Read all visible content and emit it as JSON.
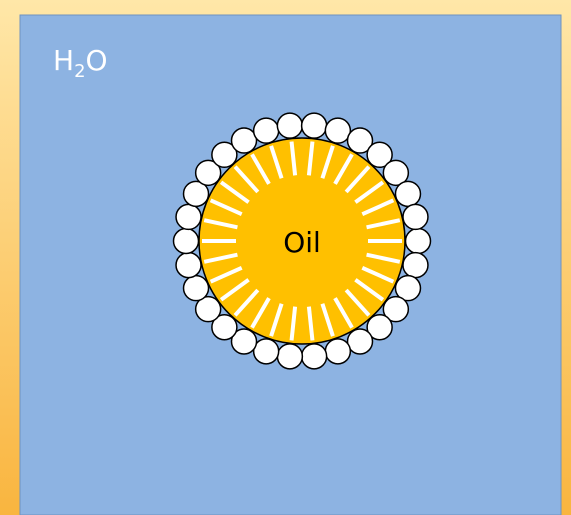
{
  "labels": {
    "water": {
      "base": "H",
      "subscript": "2",
      "tail": "O"
    },
    "oil": "Oil"
  }
}
